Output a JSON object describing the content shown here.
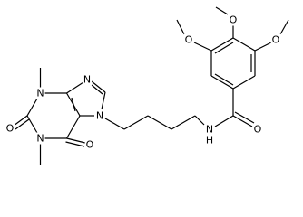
{
  "atoms": {
    "o_methoxy_left": "O",
    "o_methoxy_top": "O",
    "o_methoxy_right": "O",
    "n3": "N",
    "n1": "N",
    "n9": "N",
    "n7": "N",
    "o2": "O",
    "o6": "O",
    "n_amide": "N",
    "h_amide": "H",
    "o_amide": "O"
  }
}
